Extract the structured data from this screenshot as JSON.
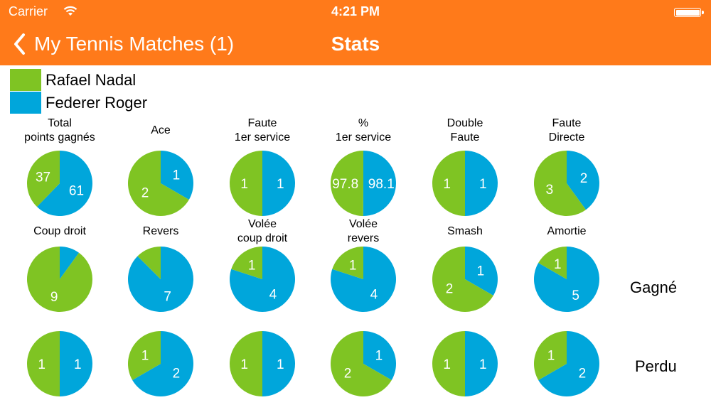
{
  "status_bar": {
    "carrier": "Carrier",
    "time": "4:21 PM"
  },
  "nav": {
    "back_label": "My Tennis Matches (1)",
    "title": "Stats"
  },
  "colors": {
    "nadal": "#7fc423",
    "federer": "#00a6db",
    "bar": "#ff7a1a"
  },
  "legend": [
    {
      "name": "Rafael Nadal",
      "color": "#7fc423"
    },
    {
      "name": "Federer Roger",
      "color": "#00a6db"
    }
  ],
  "row_labels": {
    "won": "Gagné",
    "lost": "Perdu"
  },
  "stats_row1": [
    {
      "title": "Total\npoints gagnés",
      "nadal": 37,
      "federer": 61,
      "nadal_label": "37",
      "federer_label": "61"
    },
    {
      "title": "Ace",
      "nadal": 2,
      "federer": 1,
      "nadal_label": "2",
      "federer_label": "1"
    },
    {
      "title": "Faute\n1er service",
      "nadal": 1,
      "federer": 1,
      "nadal_label": "1",
      "federer_label": "1"
    },
    {
      "title": "%\n1er service",
      "nadal": 97.8,
      "federer": 98.1,
      "nadal_label": "97.8",
      "federer_label": "98.1"
    },
    {
      "title": "Double\nFaute",
      "nadal": 1,
      "federer": 1,
      "nadal_label": "1",
      "federer_label": "1"
    },
    {
      "title": "Faute\nDirecte",
      "nadal": 3,
      "federer": 2,
      "nadal_label": "3",
      "federer_label": "2"
    }
  ],
  "stats_row2": [
    {
      "title": "Coup droit",
      "nadal": 9,
      "federer": 1,
      "nadal_label": "9",
      "federer_label": ""
    },
    {
      "title": "Revers",
      "nadal": 1,
      "federer": 7,
      "nadal_label": "",
      "federer_label": "7"
    },
    {
      "title": "Volée\ncoup droit",
      "nadal": 1,
      "federer": 4,
      "nadal_label": "1",
      "federer_label": "4"
    },
    {
      "title": "Volée\nrevers",
      "nadal": 1,
      "federer": 4,
      "nadal_label": "1",
      "federer_label": "4"
    },
    {
      "title": "Smash",
      "nadal": 2,
      "federer": 1,
      "nadal_label": "2",
      "federer_label": "1"
    },
    {
      "title": "Amortie",
      "nadal": 1,
      "federer": 5,
      "nadal_label": "1",
      "federer_label": "5"
    }
  ],
  "stats_row3": [
    {
      "title": "",
      "nadal": 1,
      "federer": 1,
      "nadal_label": "1",
      "federer_label": "1"
    },
    {
      "title": "",
      "nadal": 1,
      "federer": 2,
      "nadal_label": "1",
      "federer_label": "2"
    },
    {
      "title": "",
      "nadal": 1,
      "federer": 1,
      "nadal_label": "1",
      "federer_label": "1"
    },
    {
      "title": "",
      "nadal": 2,
      "federer": 1,
      "nadal_label": "2",
      "federer_label": "1"
    },
    {
      "title": "",
      "nadal": 1,
      "federer": 1,
      "nadal_label": "1",
      "federer_label": "1"
    },
    {
      "title": "",
      "nadal": 1,
      "federer": 2,
      "nadal_label": "1",
      "federer_label": "2"
    }
  ]
}
